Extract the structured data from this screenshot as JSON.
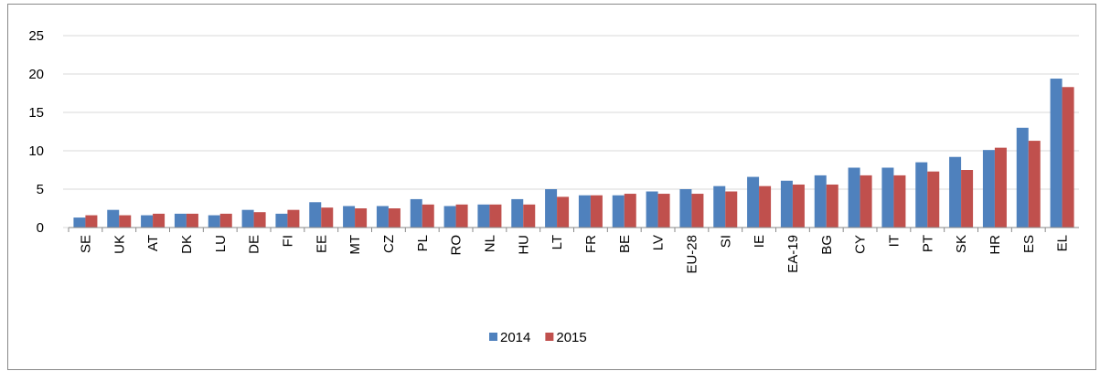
{
  "chart_data": {
    "type": "bar",
    "categories": [
      "SE",
      "UK",
      "AT",
      "DK",
      "LU",
      "DE",
      "FI",
      "EE",
      "MT",
      "CZ",
      "PL",
      "RO",
      "NL",
      "HU",
      "LT",
      "FR",
      "BE",
      "LV",
      "EU-28",
      "SI",
      "IE",
      "EA-19",
      "BG",
      "CY",
      "IT",
      "PT",
      "SK",
      "HR",
      "ES",
      "EL"
    ],
    "series": [
      {
        "name": "2014",
        "color": "#4f81bd",
        "values": [
          1.3,
          2.3,
          1.6,
          1.8,
          1.6,
          2.3,
          1.8,
          3.3,
          2.8,
          2.8,
          3.7,
          2.8,
          3.0,
          3.7,
          5.0,
          4.2,
          4.2,
          4.7,
          5.0,
          5.4,
          6.6,
          6.1,
          6.8,
          7.8,
          7.8,
          8.5,
          9.2,
          10.1,
          13.0,
          19.4
        ]
      },
      {
        "name": "2015",
        "color": "#c0504d",
        "values": [
          1.6,
          1.6,
          1.8,
          1.8,
          1.8,
          2.0,
          2.3,
          2.6,
          2.5,
          2.5,
          3.0,
          3.0,
          3.0,
          3.0,
          4.0,
          4.2,
          4.4,
          4.4,
          4.4,
          4.7,
          5.4,
          5.6,
          5.6,
          6.8,
          6.8,
          7.3,
          7.5,
          10.4,
          11.3,
          18.3
        ]
      }
    ],
    "ylim": [
      0,
      25
    ],
    "yticks": [
      0,
      5,
      10,
      15,
      20,
      25
    ],
    "grid": true,
    "legend": "bottom"
  }
}
